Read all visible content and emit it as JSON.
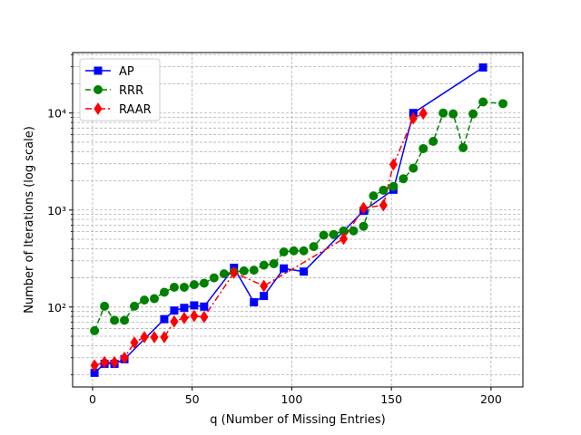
{
  "chart_data": {
    "type": "line",
    "title": "",
    "xlabel": "q (Number of Missing Entries)",
    "ylabel": "Number of Iterations (log scale)",
    "xlim": [
      -10,
      216
    ],
    "ylim": [
      15,
      42000
    ],
    "yscale": "log",
    "grid": "both-major-minor-dashed",
    "legend_position": "upper-left",
    "x_ticks": [
      0,
      50,
      100,
      150,
      200
    ],
    "x_tick_labels": [
      "0",
      "50",
      "100",
      "150",
      "200"
    ],
    "y_ticks": [
      100,
      1000,
      10000
    ],
    "y_tick_labels": [
      "10²",
      "10³",
      "10⁴"
    ],
    "series": [
      {
        "name": "AP",
        "color": "#0000ff",
        "line_style": "solid",
        "marker": "square",
        "x": [
          1,
          6,
          11,
          16,
          36,
          41,
          46,
          51,
          56,
          71,
          81,
          86,
          96,
          106,
          136,
          151,
          161,
          196
        ],
        "y": [
          21,
          26,
          26,
          29,
          75,
          92,
          98,
          104,
          101,
          254,
          112,
          130,
          250,
          232,
          980,
          1620,
          10000,
          29500
        ]
      },
      {
        "name": "RRR",
        "color": "#008000",
        "line_style": "dashed",
        "marker": "circle",
        "x": [
          1,
          6,
          11,
          16,
          21,
          26,
          31,
          36,
          41,
          46,
          51,
          56,
          61,
          66,
          71,
          76,
          81,
          86,
          91,
          96,
          101,
          106,
          111,
          116,
          121,
          126,
          131,
          136,
          141,
          146,
          151,
          156,
          161,
          166,
          171,
          176,
          181,
          186,
          191,
          196,
          206
        ],
        "y": [
          57,
          102,
          73,
          73,
          102,
          118,
          122,
          142,
          160,
          160,
          170,
          176,
          200,
          220,
          230,
          236,
          240,
          270,
          280,
          370,
          380,
          380,
          420,
          550,
          560,
          610,
          610,
          680,
          1400,
          1600,
          1750,
          2100,
          2700,
          4300,
          5100,
          10000,
          9800,
          4400,
          9800,
          13000,
          12500
        ]
      },
      {
        "name": "RAAR",
        "color": "#ff0000",
        "line_style": "dashdot",
        "marker": "diamond",
        "x": [
          1,
          6,
          11,
          16,
          21,
          26,
          31,
          36,
          41,
          46,
          51,
          56,
          71,
          86,
          126,
          136,
          146,
          151,
          161,
          166
        ],
        "y": [
          25,
          27,
          27,
          30,
          43,
          49,
          49,
          49,
          71,
          77,
          81,
          79,
          226,
          165,
          505,
          1050,
          1120,
          2950,
          8800,
          9900
        ]
      }
    ]
  }
}
